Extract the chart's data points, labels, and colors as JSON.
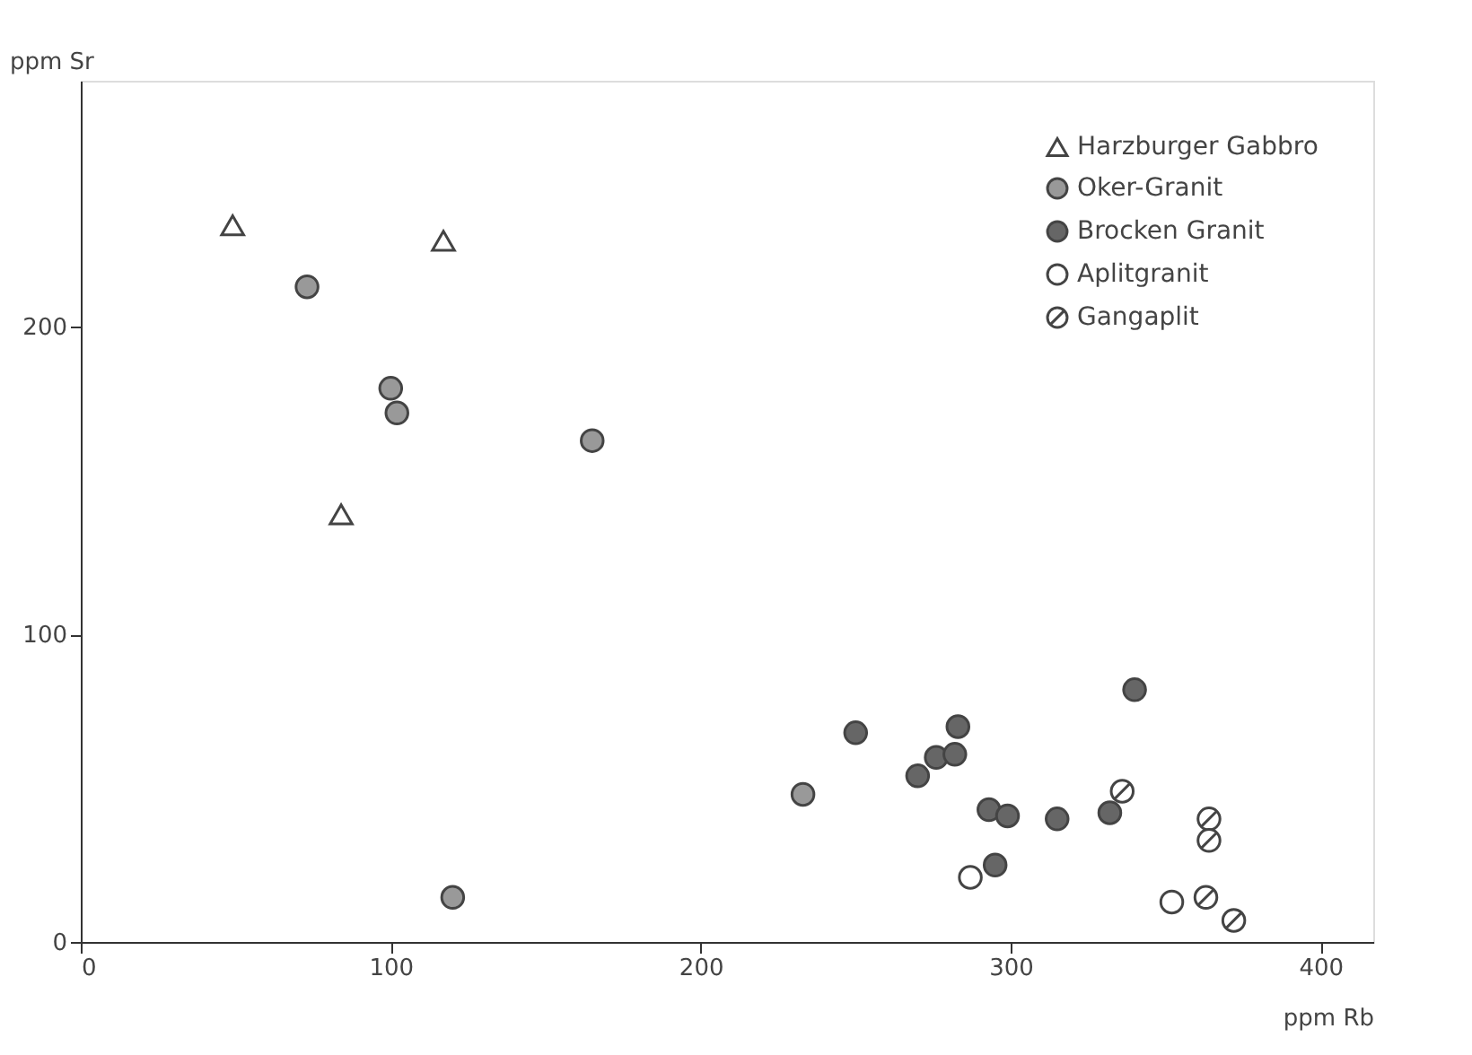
{
  "chart_data": {
    "type": "scatter",
    "xlabel": "ppm Rb",
    "ylabel": "ppm Sr",
    "xlim": [
      0,
      417
    ],
    "ylim": [
      0,
      280
    ],
    "xticks": [
      0,
      100,
      200,
      300,
      400
    ],
    "yticks": [
      0,
      100,
      200
    ],
    "grid": false,
    "legend": "top right",
    "series": [
      {
        "name": "Harzburger Gabbro",
        "color": "#ffffff",
        "marker": "triangle",
        "x": [
          49,
          117,
          84
        ],
        "values": [
          233,
          228,
          139
        ]
      },
      {
        "name": "Oker-Granit",
        "color": "#999999",
        "marker": "circle",
        "x": [
          73,
          100,
          102,
          165,
          233,
          120
        ],
        "values": [
          213,
          180,
          172,
          163,
          48,
          14.5
        ]
      },
      {
        "name": "Brocken Granit",
        "color": "#666666",
        "marker": "circle",
        "x": [
          250,
          283,
          270,
          276,
          282,
          340,
          293,
          299,
          315,
          332,
          295
        ],
        "values": [
          68,
          70,
          54,
          60,
          61,
          82,
          43,
          41,
          40,
          42,
          25
        ]
      },
      {
        "name": "Aplitgranit",
        "color": "#ffffff",
        "marker": "circle",
        "x": [
          287,
          352
        ],
        "values": [
          21,
          13
        ]
      },
      {
        "name": "Gangaplit",
        "color": "#ffffff",
        "marker": "cross",
        "x": [
          336,
          364,
          364,
          363,
          372
        ],
        "values": [
          49,
          40,
          33,
          14.5,
          7
        ]
      }
    ]
  }
}
